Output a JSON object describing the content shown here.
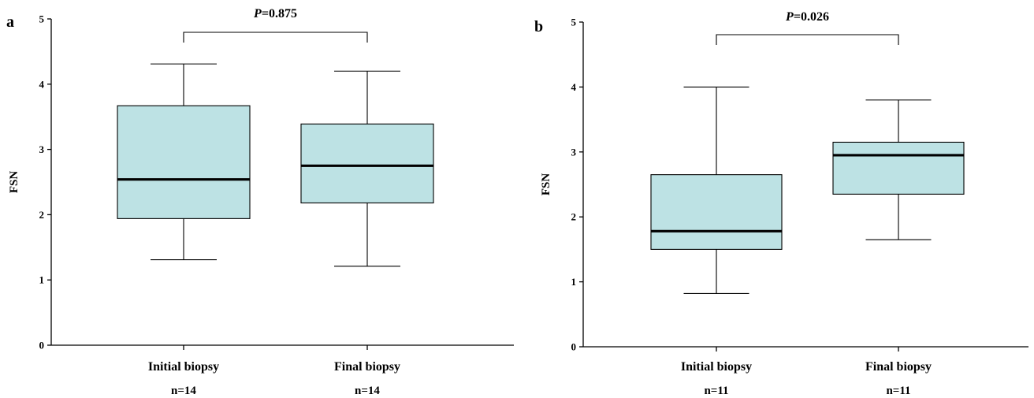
{
  "colors": {
    "box_fill": "#bde2e4",
    "stroke": "#000000"
  },
  "chart_data": [
    {
      "type": "box",
      "panel_label": "a",
      "ylabel": "FSN",
      "ylim": [
        0,
        5
      ],
      "yticks": [
        0,
        1,
        2,
        3,
        4,
        5
      ],
      "categories": [
        "Initial biopsy",
        "Final biopsy"
      ],
      "n_labels": [
        "n=14",
        "n=14"
      ],
      "boxes": [
        {
          "min": 1.31,
          "q1": 1.94,
          "median": 2.54,
          "q3": 3.67,
          "max": 4.31
        },
        {
          "min": 1.21,
          "q1": 2.18,
          "median": 2.75,
          "q3": 3.39,
          "max": 4.2
        }
      ],
      "p_prefix": "P",
      "p_value": "=0.875"
    },
    {
      "type": "box",
      "panel_label": "b",
      "ylabel": "FSN",
      "ylim": [
        0,
        5
      ],
      "yticks": [
        0,
        1,
        2,
        3,
        4,
        5
      ],
      "categories": [
        "Initial biopsy",
        "Final biopsy"
      ],
      "n_labels": [
        "n=11",
        "n=11"
      ],
      "boxes": [
        {
          "min": 0.82,
          "q1": 1.5,
          "median": 1.78,
          "q3": 2.65,
          "max": 4.0
        },
        {
          "min": 1.65,
          "q1": 2.35,
          "median": 2.95,
          "q3": 3.15,
          "max": 3.8
        }
      ],
      "p_prefix": "P",
      "p_value": "=0.026"
    }
  ]
}
